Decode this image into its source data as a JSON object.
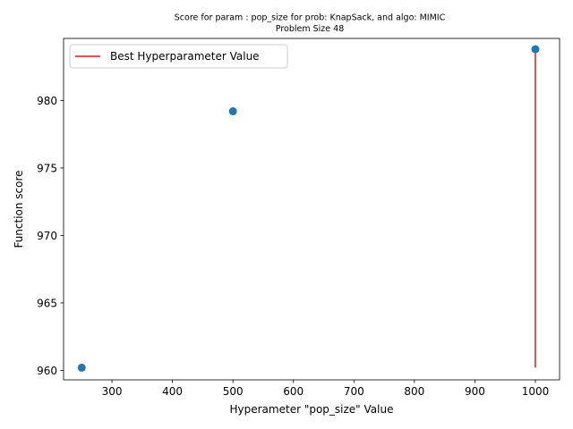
{
  "chart_data": {
    "type": "scatter",
    "title_line1": "Score for param : pop_size for prob: KnapSack, and algo: MIMIC",
    "title_line2": "Problem Size 48",
    "xlabel": "Hyperameter \"pop_size\" Value",
    "ylabel": "Function score",
    "xlim": [
      220,
      1040
    ],
    "ylim": [
      959.3,
      984.6
    ],
    "x_ticks": [
      300,
      400,
      500,
      600,
      700,
      800,
      900,
      1000
    ],
    "y_ticks": [
      960,
      965,
      970,
      975,
      980
    ],
    "series": [
      {
        "x": [
          250,
          500,
          1000
        ],
        "y": [
          960.2,
          979.2,
          983.8
        ],
        "color": "#1f77b4"
      }
    ],
    "best_line": {
      "label": "Best Hyperparameter Value",
      "x": 1000,
      "y_from": 960.2,
      "y_to": 983.8,
      "color": "#e31a1c"
    },
    "legend_position": "upper-left",
    "grid": false
  }
}
